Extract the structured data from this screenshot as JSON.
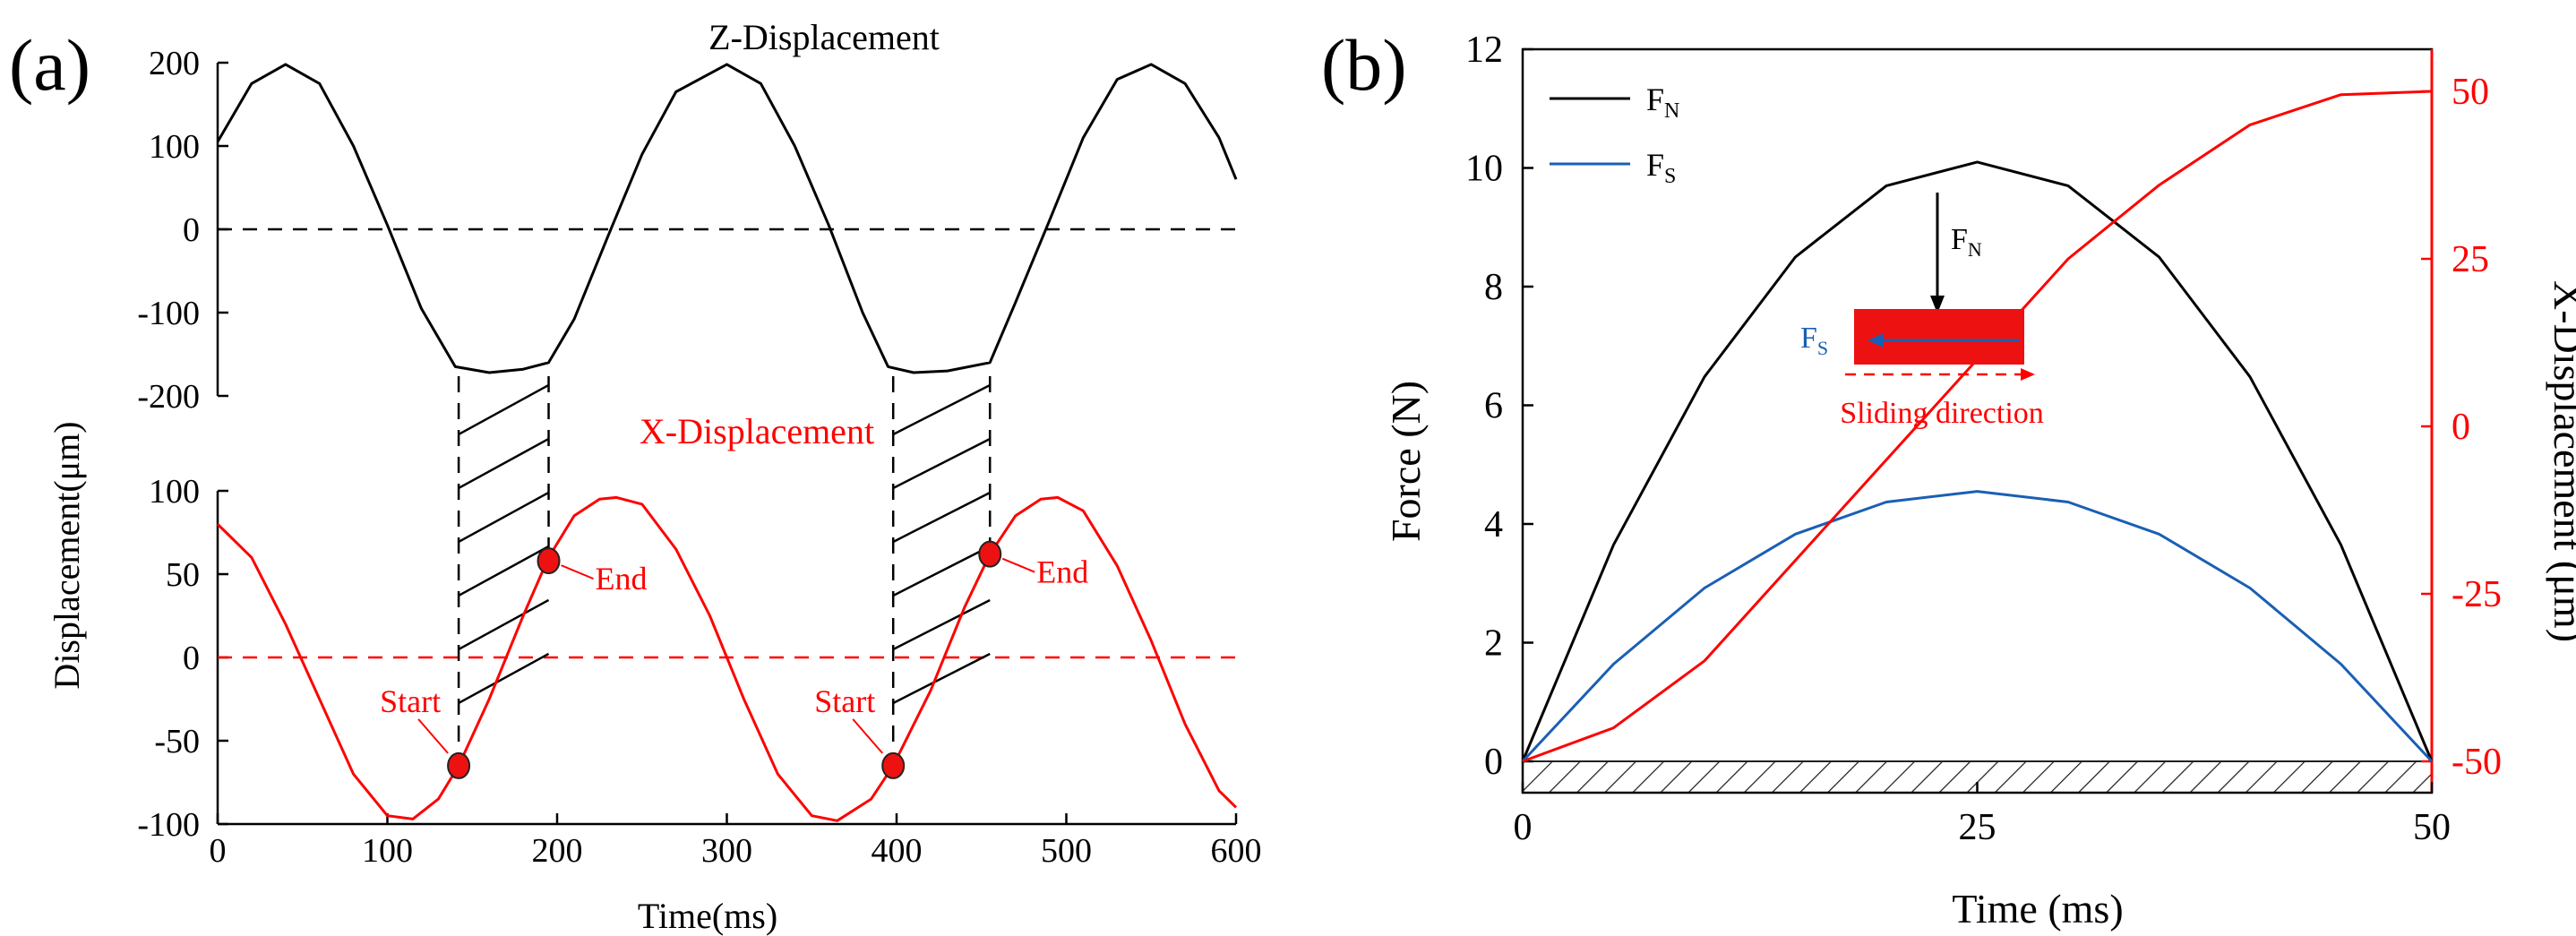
{
  "colors": {
    "black": "#000000",
    "red": "#ff0000",
    "blue": "#1a5fb4",
    "fill": "#ee1111",
    "ink": "#202020"
  },
  "chart_data": [
    {
      "type": "line",
      "panel_label": "(a)",
      "xlabel": "Time(ms)",
      "ylabel": "Displacement(μm)",
      "xlim": [
        0,
        600
      ],
      "x_ticks": [
        0,
        100,
        200,
        300,
        400,
        500,
        600
      ],
      "z_plot": {
        "title": "Z-Displacement",
        "ylim": [
          -200,
          200
        ],
        "y_ticks": [
          200,
          100,
          0,
          -100,
          -200
        ],
        "series": [
          {
            "name": "Z-Displacement",
            "color": "#000000",
            "x": [
              0,
              20,
              40,
              60,
              80,
              100,
              120,
              140,
              160,
              180,
              195,
              210,
              230,
              250,
              270,
              300,
              320,
              340,
              360,
              380,
              395,
              410,
              430,
              455,
              470,
              490,
              510,
              530,
              550,
              570,
              590,
              600
            ],
            "y": [
              105,
              175,
              198,
              175,
              100,
              5,
              -95,
              -165,
              -172,
              -168,
              -160,
              -108,
              -8,
              90,
              165,
              198,
              175,
              100,
              5,
              -100,
              -165,
              -172,
              -170,
              -160,
              -88,
              10,
              110,
              180,
              198,
              175,
              110,
              60
            ]
          }
        ],
        "zero_line": 0
      },
      "x_plot": {
        "title": "X-Displacement",
        "ylim": [
          -100,
          100
        ],
        "y_ticks": [
          100,
          50,
          0,
          -50,
          -100
        ],
        "series": [
          {
            "name": "X-Displacement",
            "color": "#ff0000",
            "x": [
              0,
              20,
              40,
              60,
              80,
              100,
              115,
              130,
              142,
              160,
              180,
              195,
              210,
              225,
              235,
              250,
              270,
              290,
              310,
              330,
              350,
              365,
              385,
              398,
              420,
              440,
              455,
              470,
              485,
              495,
              510,
              530,
              550,
              570,
              590,
              600
            ],
            "y": [
              80,
              60,
              20,
              -25,
              -70,
              -95,
              -97,
              -85,
              -65,
              -25,
              25,
              60,
              85,
              95,
              96,
              92,
              65,
              25,
              -25,
              -70,
              -95,
              -98,
              -85,
              -65,
              -20,
              30,
              62,
              85,
              95,
              96,
              88,
              55,
              10,
              -40,
              -80,
              -90
            ]
          }
        ],
        "zero_line": 0,
        "markers": [
          {
            "label": "Start",
            "x": 142,
            "y": -65
          },
          {
            "label": "End",
            "x": 195,
            "y": 58
          },
          {
            "label": "Start",
            "x": 398,
            "y": -65
          },
          {
            "label": "End",
            "x": 455,
            "y": 62
          }
        ]
      },
      "contact_windows": [
        [
          142,
          195
        ],
        [
          398,
          455
        ]
      ]
    },
    {
      "type": "line",
      "panel_label": "(b)",
      "xlabel": "Time (ms)",
      "ylabel": "Force (N)",
      "y2label": "X-Displacement (μm)",
      "xlim": [
        0,
        50
      ],
      "ylim": [
        0,
        12
      ],
      "y2lim": [
        -50,
        50
      ],
      "x_ticks": [
        0,
        25,
        50
      ],
      "y_ticks": [
        0,
        2,
        4,
        6,
        8,
        10,
        12
      ],
      "y2_ticks": [
        50,
        25,
        0,
        -25,
        -50
      ],
      "series": [
        {
          "name": "F_N",
          "color": "#000000",
          "axis": "left",
          "x": [
            0,
            5,
            10,
            15,
            20,
            25,
            30,
            35,
            40,
            45,
            50
          ],
          "y": [
            0,
            3.65,
            6.48,
            8.5,
            9.7,
            10.1,
            9.7,
            8.5,
            6.48,
            3.65,
            0
          ]
        },
        {
          "name": "F_S",
          "color": "#1a5fb4",
          "axis": "left",
          "x": [
            0,
            5,
            10,
            15,
            20,
            25,
            30,
            35,
            40,
            45,
            50
          ],
          "y": [
            0,
            1.64,
            2.92,
            3.83,
            4.37,
            4.55,
            4.37,
            3.83,
            2.92,
            1.64,
            0
          ]
        },
        {
          "name": "X-Displacement",
          "color": "#ff0000",
          "axis": "right",
          "x": [
            0,
            5,
            10,
            15,
            20,
            25,
            30,
            35,
            40,
            45,
            50
          ],
          "y": [
            -50,
            -45,
            -35,
            -20,
            -5,
            10,
            25,
            36,
            45,
            49.5,
            50
          ]
        }
      ],
      "legend": [
        {
          "main": "F",
          "sub": "N",
          "color": "#000000"
        },
        {
          "main": "F",
          "sub": "S",
          "color": "#1a5fb4"
        }
      ],
      "inset": {
        "fn_main": "F",
        "fn_sub": "N",
        "fs_main": "F",
        "fs_sub": "S",
        "caption": "Sliding direction"
      }
    }
  ]
}
